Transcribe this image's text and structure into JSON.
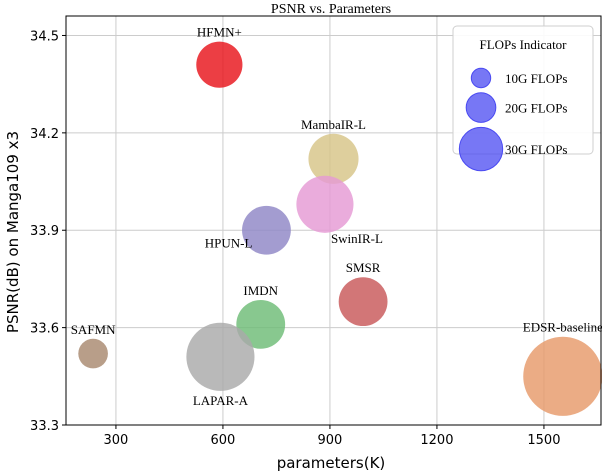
{
  "chart_data": {
    "type": "scatter",
    "title": "PSNR vs. Parameters",
    "xlabel": "parameters(K)",
    "ylabel": "PSNR(dB) on Manga109 x3",
    "xlim": [
      160,
      1660
    ],
    "ylim": [
      33.3,
      34.56
    ],
    "xticks": [
      300,
      600,
      900,
      1200,
      1500
    ],
    "yticks": [
      33.3,
      33.6,
      33.9,
      34.2,
      34.5
    ],
    "xtick_labels": [
      "300",
      "600",
      "900",
      "1200",
      "1500"
    ],
    "ytick_labels": [
      "33.3",
      "33.6",
      "33.9",
      "34.2",
      "34.5"
    ],
    "grid": true,
    "bubble_size_metric": "FLOPs",
    "points": [
      {
        "name": "HFMN+",
        "x": 590,
        "y": 34.41,
        "flops": 17,
        "color": "#e8141b",
        "label_pos": "above"
      },
      {
        "name": "MambaIR-L",
        "x": 910,
        "y": 34.12,
        "flops": 20,
        "color": "#d7c588",
        "label_pos": "above"
      },
      {
        "name": "SwinIR-L",
        "x": 886,
        "y": 33.98,
        "flops": 26,
        "color": "#e59ad4",
        "label_pos": "below-right"
      },
      {
        "name": "HPUN-L",
        "x": 722,
        "y": 33.9,
        "flops": 19,
        "color": "#8f86c6",
        "label_pos": "below-left"
      },
      {
        "name": "SMSR",
        "x": 993,
        "y": 33.68,
        "flops": 19,
        "color": "#c85859",
        "label_pos": "above"
      },
      {
        "name": "IMDN",
        "x": 706,
        "y": 33.61,
        "flops": 19,
        "color": "#6ebc76",
        "label_pos": "above"
      },
      {
        "name": "SAFMN",
        "x": 236,
        "y": 33.52,
        "flops": 7,
        "color": "#a8896f",
        "label_pos": "above"
      },
      {
        "name": "LAPAR-A",
        "x": 593,
        "y": 33.51,
        "flops": 37,
        "color": "#a9a9a9",
        "label_pos": "below"
      },
      {
        "name": "EDSR-baseline",
        "x": 1553,
        "y": 33.45,
        "flops": 50,
        "color": "#e69a6a",
        "label_pos": "above"
      }
    ],
    "legend": {
      "title": "FLOPs Indicator",
      "placement": "top-right",
      "color": "#4a4af2",
      "entries": [
        {
          "label": "10G FLOPs",
          "flops": 3
        },
        {
          "label": "20G FLOPs",
          "flops": 7
        },
        {
          "label": "30G FLOPs",
          "flops": 15
        }
      ]
    }
  }
}
